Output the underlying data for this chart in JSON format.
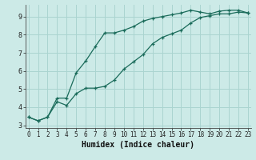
{
  "title": "",
  "xlabel": "Humidex (Indice chaleur)",
  "ylabel": "",
  "background_color": "#cceae7",
  "grid_color": "#aad4d0",
  "line_color": "#1a6b5a",
  "x_ticks": [
    0,
    1,
    2,
    3,
    4,
    5,
    6,
    7,
    8,
    9,
    10,
    11,
    12,
    13,
    14,
    15,
    16,
    17,
    18,
    19,
    20,
    21,
    22,
    23
  ],
  "y_ticks": [
    3,
    4,
    5,
    6,
    7,
    8,
    9
  ],
  "xlim": [
    -0.3,
    23.3
  ],
  "ylim": [
    2.85,
    9.65
  ],
  "line1_x": [
    0,
    1,
    2,
    3,
    4,
    5,
    6,
    7,
    8,
    9,
    10,
    11,
    12,
    13,
    14,
    15,
    16,
    17,
    18,
    19,
    20,
    21,
    22,
    23
  ],
  "line1_y": [
    3.45,
    3.25,
    3.45,
    4.5,
    4.5,
    5.9,
    6.55,
    7.35,
    8.1,
    8.1,
    8.25,
    8.45,
    8.75,
    8.9,
    9.0,
    9.1,
    9.2,
    9.35,
    9.25,
    9.15,
    9.3,
    9.35,
    9.35,
    9.2
  ],
  "line2_x": [
    0,
    1,
    2,
    3,
    4,
    5,
    6,
    7,
    8,
    9,
    10,
    11,
    12,
    13,
    14,
    15,
    16,
    17,
    18,
    19,
    20,
    21,
    22,
    23
  ],
  "line2_y": [
    3.45,
    3.25,
    3.45,
    4.3,
    4.1,
    4.75,
    5.05,
    5.05,
    5.15,
    5.5,
    6.1,
    6.5,
    6.9,
    7.5,
    7.85,
    8.05,
    8.25,
    8.65,
    8.95,
    9.05,
    9.15,
    9.15,
    9.25,
    9.2
  ],
  "tick_labelsize": 5.5,
  "xlabel_fontsize": 7.0,
  "xlabel_fontweight": "bold"
}
